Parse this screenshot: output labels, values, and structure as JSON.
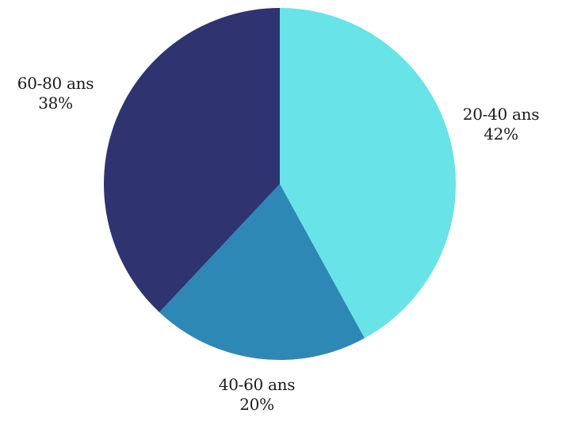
{
  "chart_data": {
    "type": "pie",
    "slices": [
      {
        "label": "20-40 ans",
        "value": 42,
        "value_label": "42%",
        "color": "#68e3e8"
      },
      {
        "label": "40-60 ans",
        "value": 20,
        "value_label": "20%",
        "color": "#2e88b5"
      },
      {
        "label": "60-80 ans",
        "value": 38,
        "value_label": "38%",
        "color": "#2f3370"
      }
    ],
    "start": "12 o'clock",
    "direction": "clockwise",
    "legend": "none"
  }
}
